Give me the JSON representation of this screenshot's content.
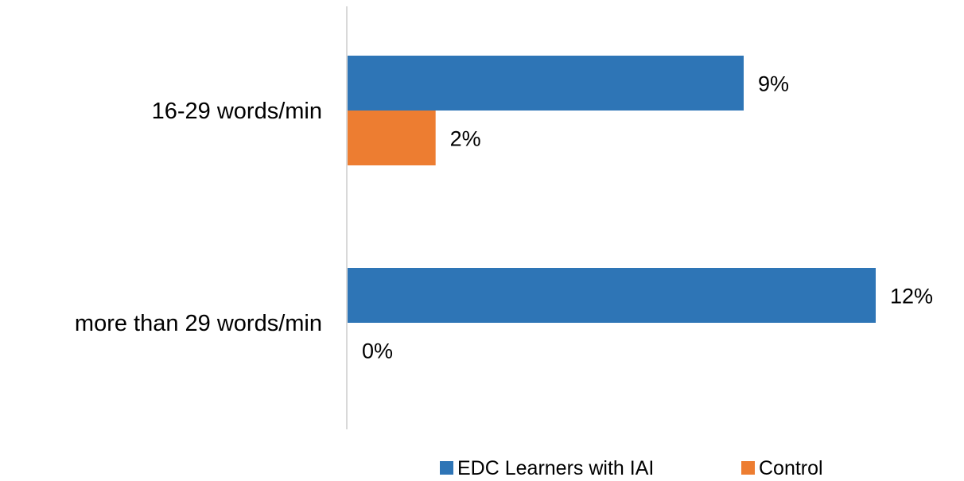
{
  "chart_data": {
    "type": "bar",
    "orientation": "horizontal",
    "categories": [
      "16-29 words/min",
      "more than 29 words/min"
    ],
    "series": [
      {
        "name": "EDC Learners with IAI",
        "color": "#2E75B6",
        "values": [
          9,
          12
        ],
        "labels": [
          "9%",
          "12%"
        ]
      },
      {
        "name": "Control",
        "color": "#ED7D31",
        "values": [
          2,
          0
        ],
        "labels": [
          "2%",
          "0%"
        ]
      }
    ],
    "value_unit": "%",
    "xlim": [
      0,
      12
    ],
    "grid": false,
    "legend_position": "bottom",
    "axis_color": "#D9D9D9"
  }
}
